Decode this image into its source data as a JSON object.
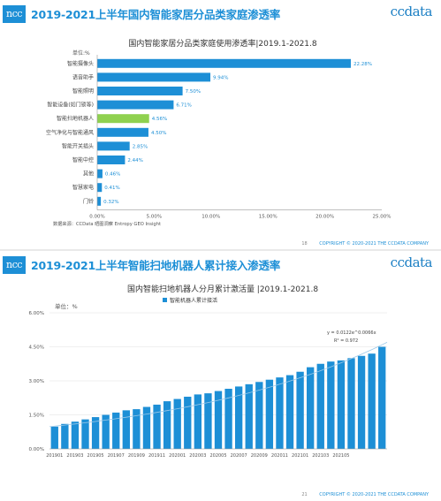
{
  "slide1": {
    "logo_left": "ncc",
    "title": "2019-2021上半年国内智能家居分品类家庭渗透率",
    "logo_right": "ccdata",
    "chart_title": "国内智能家居分品类家庭使用渗透率|2019.1-2021.8",
    "unit": "单位:%",
    "source": "数据来源：CCData 晒图洞察 Entropy GEO Insight",
    "page_number": "18",
    "copyright": "COPYRIGHT © 2020-2021 THE CCDATA COMPANY",
    "colors": {
      "bar": "#1d8fd6",
      "highlight": "#8fd14f",
      "title": "#1d8fd6"
    }
  },
  "slide2": {
    "logo_left": "ncc",
    "title": "2019-2021上半年智能扫地机器人累计接入渗透率",
    "logo_right": "ccdata",
    "chart_title": "国内智能扫地机器人分月累计激活量 |2019.1-2021.8",
    "legend": "智能机器人累计接活",
    "unit": "单位：%",
    "trend_equation": "y = 0.0122e^0.0066x",
    "r_squared": "R² = 0.972",
    "page_number": "21",
    "copyright": "COPYRIGHT © 2020-2021 THE CCDATA COMPANY",
    "colors": {
      "bar": "#1d8fd6",
      "trend": "#9bc8e8"
    }
  },
  "chart_data": [
    {
      "type": "bar",
      "orientation": "horizontal",
      "title": "国内智能家居分品类家庭使用渗透率|2019.1-2021.8",
      "categories": [
        "智能摄像头",
        "语音助手",
        "智能照明",
        "智能设备(如门锁等)",
        "智能扫地机器人",
        "空气净化与智能通风",
        "智能开关插头",
        "智能中控",
        "其他",
        "智慧家电",
        "门铃"
      ],
      "values": [
        22.28,
        9.94,
        7.5,
        6.71,
        4.56,
        4.5,
        2.85,
        2.44,
        0.46,
        0.41,
        0.32
      ],
      "value_labels": [
        "22.28%",
        "9.94%",
        "7.50%",
        "6.71%",
        "4.56%",
        "4.50%",
        "2.85%",
        "2.44%",
        "0.46%",
        "0.41%",
        "0.32%"
      ],
      "highlight_index": 4,
      "xlim": [
        0,
        25
      ],
      "x_ticks": [
        "0.00%",
        "5.00%",
        "10.00%",
        "15.00%",
        "20.00%",
        "25.00%"
      ],
      "grid": false
    },
    {
      "type": "bar",
      "orientation": "vertical",
      "title": "国内智能扫地机器人分月累计激活量 |2019.1-2021.8",
      "legend": "智能机器人累计接活",
      "legend_position": "top-center",
      "values": [
        0.98,
        1.1,
        1.2,
        1.3,
        1.4,
        1.5,
        1.6,
        1.7,
        1.75,
        1.85,
        1.95,
        2.1,
        2.2,
        2.3,
        2.4,
        2.45,
        2.55,
        2.65,
        2.75,
        2.85,
        2.95,
        3.05,
        3.15,
        3.25,
        3.4,
        3.6,
        3.75,
        3.85,
        3.9,
        4.0,
        4.1,
        4.2,
        4.5
      ],
      "x_tick_labels": [
        "201901",
        "201903",
        "201905",
        "201907",
        "201909",
        "201911",
        "202001",
        "202003",
        "202005",
        "202007",
        "202009",
        "202011",
        "202101",
        "202103",
        "202105"
      ],
      "ylim": [
        0,
        6
      ],
      "y_ticks": [
        "0.00%",
        "1.50%",
        "3.00%",
        "4.50%",
        "6.00%"
      ],
      "trendline": "exponential",
      "grid": true
    }
  ]
}
